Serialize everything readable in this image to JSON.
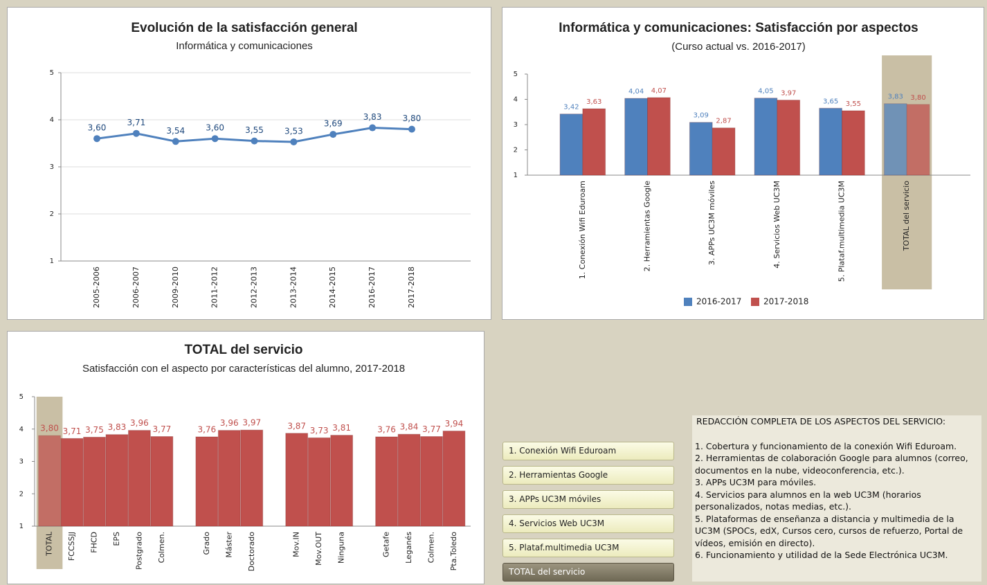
{
  "chart_data": [
    {
      "type": "line",
      "title": "Evolución de la satisfacción general",
      "subtitle": "Informática y comunicaciones",
      "categories": [
        "2005-2006",
        "2006-2007",
        "2009-2010",
        "2011-2012",
        "2012-2013",
        "2013-2014",
        "2014-2015",
        "2016-2017",
        "2017-2018"
      ],
      "values": [
        3.6,
        3.71,
        3.54,
        3.6,
        3.55,
        3.53,
        3.69,
        3.83,
        3.8
      ],
      "value_labels": [
        "3,60",
        "3,71",
        "3,54",
        "3,60",
        "3,55",
        "3,53",
        "3,69",
        "3,83",
        "3,80"
      ],
      "color": "#4f81bd",
      "ylim": [
        1,
        5
      ],
      "yticks": [
        1,
        2,
        3,
        4,
        5
      ],
      "grid": true
    },
    {
      "type": "bar",
      "title": "Informática y comunicaciones: Satisfacción por aspectos",
      "subtitle": "(Curso actual vs. 2016-2017)",
      "categories": [
        "1. Conexión Wifi Eduroam",
        "2. Herramientas Google",
        "3. APPs UC3M móviles",
        "4. Servicios Web UC3M",
        "5. Plataf.multimedia UC3M",
        "TOTAL del servicio"
      ],
      "series": [
        {
          "name": "2016-2017",
          "color": "#4f81bd",
          "values": [
            3.42,
            4.04,
            3.09,
            4.05,
            3.65,
            3.83
          ],
          "value_labels": [
            "3,42",
            "4,04",
            "3,09",
            "4,05",
            "3,65",
            "3,83"
          ]
        },
        {
          "name": "2017-2018",
          "color": "#c0504d",
          "values": [
            3.63,
            4.07,
            2.87,
            3.97,
            3.55,
            3.8
          ],
          "value_labels": [
            "3,63",
            "4,07",
            "2,87",
            "3,97",
            "3,55",
            "3,80"
          ]
        }
      ],
      "ylim": [
        1,
        5
      ],
      "yticks": [
        1,
        2,
        3,
        4,
        5
      ],
      "grid": false,
      "highlight": 5,
      "legend": "bottom"
    },
    {
      "type": "bar",
      "title": "TOTAL del servicio",
      "subtitle": "Satisfacción con el aspecto por características del alumno, 2017-2018",
      "categories": [
        "TOTAL",
        "FCCSSJJ",
        "FHCD",
        "EPS",
        "Postgrado",
        "Colmen.",
        null,
        "Grado",
        "Máster",
        "Doctorado",
        null,
        "Mov.IN",
        "Mov.OUT",
        "Ninguna",
        null,
        "Getafe",
        "Leganés",
        "Colmen.",
        "Pta.Toledo"
      ],
      "values": [
        3.8,
        3.71,
        3.75,
        3.83,
        3.96,
        3.77,
        null,
        3.76,
        3.96,
        3.97,
        null,
        3.87,
        3.73,
        3.81,
        null,
        3.76,
        3.84,
        3.77,
        3.94
      ],
      "value_labels": [
        "3,80",
        "3,71",
        "3,75",
        "3,83",
        "3,96",
        "3,77",
        null,
        "3,76",
        "3,96",
        "3,97",
        null,
        "3,87",
        "3,73",
        "3,81",
        null,
        "3,76",
        "3,84",
        "3,77",
        "3,94"
      ],
      "color": "#c0504d",
      "ylim": [
        1,
        5
      ],
      "yticks": [
        1,
        2,
        3,
        4,
        5
      ],
      "grid": false,
      "highlight": 0
    }
  ],
  "buttons": [
    "1. Conexión Wifi Eduroam",
    "2. Herramientas Google",
    "3. APPs UC3M móviles",
    "4. Servicios Web UC3M",
    "5. Plataf.multimedia UC3M",
    "TOTAL del servicio"
  ],
  "description": {
    "heading": "REDACCIÓN COMPLETA DE LOS ASPECTOS DEL SERVICIO:",
    "items": [
      "1. Cobertura y funcionamiento de la conexión Wifi Eduroam.",
      "2. Herramientas de colaboración Google para alumnos (correo, documentos en la nube, videoconferencia, etc.).",
      "3. APPs UC3M para móviles.",
      "4. Servicios para alumnos en la web UC3M (horarios personalizados, notas medias, etc.).",
      "5. Plataformas de enseñanza a distancia y multimedia de la UC3M (SPOCs, edX, Cursos cero, cursos de refuerzo, Portal de vídeos, emisión en directo).",
      "6. Funcionamiento y utilidad de la Sede Electrónica UC3M."
    ]
  }
}
